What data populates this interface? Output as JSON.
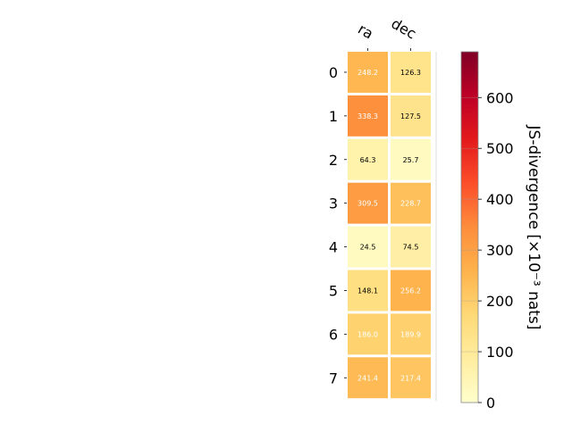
{
  "chart_data": {
    "type": "heatmap",
    "columns": [
      "ra",
      "dec"
    ],
    "rows": [
      "0",
      "1",
      "2",
      "3",
      "4",
      "5",
      "6",
      "7"
    ],
    "values": [
      [
        248.2,
        126.3
      ],
      [
        338.3,
        127.5
      ],
      [
        64.3,
        25.7
      ],
      [
        309.5,
        228.7
      ],
      [
        24.5,
        74.5
      ],
      [
        148.1,
        256.2
      ],
      [
        186.0,
        189.9
      ],
      [
        241.4,
        217.4
      ]
    ],
    "colorbar": {
      "label": "JS-divergence [×10⁻³ nats]",
      "range": [
        0,
        690
      ],
      "ticks": [
        "0",
        "100",
        "200",
        "300",
        "400",
        "500",
        "600"
      ],
      "colormap": "YlOrRd"
    },
    "text_color_threshold": 180
  }
}
